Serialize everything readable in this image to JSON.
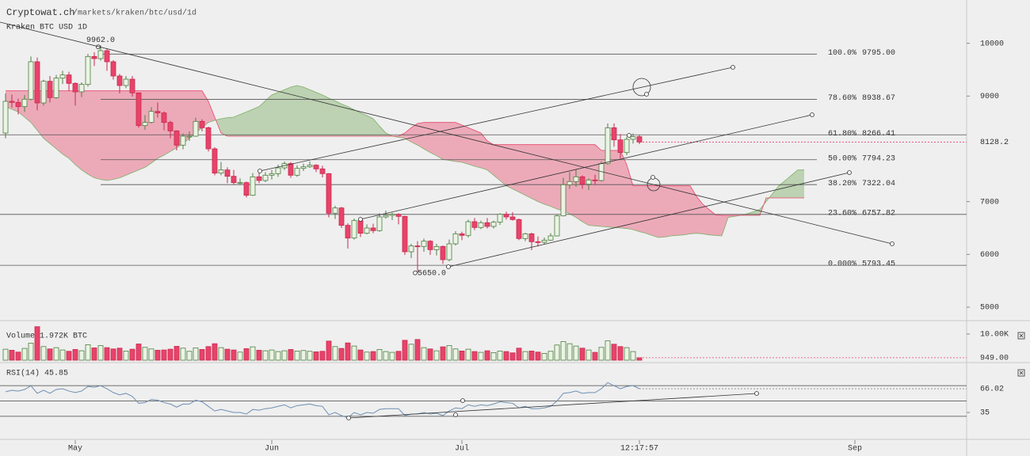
{
  "chart_data": {
    "type": "candlestick",
    "title": "Cryptowat.ch",
    "subtitle": "/markets/kraken/btc/usd/1d",
    "symbol": "Kraken BTC USD 1D",
    "xlim": [
      -0.875,
      151.625
    ],
    "xticks": [
      {
        "value": 11,
        "label": "May"
      },
      {
        "value": 42,
        "label": "Jun"
      },
      {
        "value": 72,
        "label": "Jul"
      },
      {
        "value": 100,
        "label": "12:17:57"
      },
      {
        "value": 134,
        "label": "Sep"
      }
    ],
    "ylim": [
      4745,
      10820
    ],
    "yticks": [
      5000,
      6000,
      7000,
      9000,
      10000
    ],
    "candles": {
      "up_color": "#eaf4e4",
      "up_stroke": "#4d7d3f",
      "down_color": "#e8436a",
      "down_stroke": "#c8284f",
      "last_label": "8128.2",
      "open": [
        8300,
        8900,
        8880,
        8800,
        8940,
        9650,
        8870,
        9280,
        8970,
        9340,
        9400,
        9240,
        9080,
        9220,
        9750,
        9710,
        9860,
        9650,
        9380,
        9200,
        9320,
        9060,
        8440,
        8500,
        8710,
        8680,
        8500,
        8340,
        8070,
        8240,
        8240,
        8520,
        8400,
        8000,
        7540,
        7600,
        7480,
        7360,
        7360,
        7120,
        7470,
        7400,
        7500,
        7530,
        7640,
        7720,
        7500,
        7630,
        7660,
        7690,
        7620,
        7530,
        6780,
        6880,
        6550,
        6310,
        6640,
        6400,
        6500,
        6450,
        6710,
        6740,
        6760,
        6720,
        6050,
        6160,
        6150,
        6250,
        6090,
        6150,
        5900,
        6200,
        6390,
        6360,
        6620,
        6510,
        6600,
        6530,
        6610,
        6760,
        6710,
        6660,
        6300,
        6390,
        6240,
        6230,
        6270,
        6350,
        6730,
        7320,
        7380,
        7470,
        7330,
        7410,
        7400,
        7720,
        8400,
        8170,
        7930,
        8180,
        8230
      ],
      "high": [
        9050,
        9030,
        8950,
        9020,
        9750,
        9730,
        9310,
        9380,
        9400,
        9480,
        9460,
        9260,
        9260,
        9800,
        9830,
        9962,
        9900,
        9680,
        9420,
        9380,
        9380,
        9070,
        8640,
        8790,
        8880,
        8710,
        8530,
        8350,
        8290,
        8330,
        8590,
        8560,
        8420,
        8030,
        7750,
        7650,
        7600,
        7440,
        7380,
        7540,
        7540,
        7560,
        7600,
        7700,
        7760,
        7750,
        7690,
        7720,
        7760,
        7710,
        7680,
        7540,
        6920,
        6900,
        6590,
        6680,
        6660,
        6570,
        6580,
        6780,
        6830,
        6790,
        6780,
        6730,
        6200,
        6250,
        6300,
        6270,
        6200,
        6170,
        6280,
        6440,
        6430,
        6660,
        6690,
        6640,
        6690,
        6640,
        6780,
        6810,
        6800,
        6680,
        6410,
        6410,
        6340,
        6320,
        6400,
        6750,
        7450,
        7560,
        7610,
        7500,
        7440,
        7510,
        7760,
        8480,
        8480,
        8280,
        8230,
        8290,
        8260
      ],
      "low": [
        8200,
        8780,
        8650,
        8700,
        8920,
        8730,
        8820,
        8880,
        8950,
        9230,
        9100,
        8820,
        8980,
        9180,
        9570,
        9670,
        9480,
        9310,
        9050,
        9150,
        8990,
        8400,
        8360,
        8480,
        8590,
        8350,
        8200,
        7970,
        7990,
        8150,
        8230,
        8330,
        7950,
        7500,
        7500,
        7350,
        7320,
        7320,
        7080,
        7110,
        7350,
        7370,
        7420,
        7470,
        7600,
        7450,
        7470,
        7580,
        7640,
        7560,
        7460,
        6700,
        6670,
        6500,
        6110,
        6280,
        6330,
        6380,
        6400,
        6430,
        6680,
        6650,
        6570,
        5990,
        5930,
        5650,
        6050,
        5990,
        5980,
        5820,
        5870,
        6170,
        6270,
        6320,
        6460,
        6480,
        6490,
        6490,
        6560,
        6660,
        6640,
        6270,
        6250,
        6080,
        6150,
        6190,
        6260,
        6340,
        6720,
        7240,
        7280,
        7240,
        7220,
        7320,
        7380,
        7700,
        8040,
        7820,
        7880,
        8100,
        8090
      ],
      "close": [
        8900,
        8880,
        8800,
        8940,
        9650,
        8870,
        9280,
        8970,
        9340,
        9400,
        9240,
        9080,
        9220,
        9750,
        9710,
        9860,
        9650,
        9380,
        9200,
        9320,
        9060,
        8440,
        8500,
        8710,
        8680,
        8500,
        8340,
        8070,
        8240,
        8240,
        8520,
        8400,
        8000,
        7540,
        7600,
        7480,
        7360,
        7360,
        7120,
        7470,
        7400,
        7500,
        7530,
        7640,
        7720,
        7500,
        7630,
        7660,
        7690,
        7620,
        7530,
        6780,
        6880,
        6550,
        6310,
        6640,
        6400,
        6500,
        6450,
        6710,
        6740,
        6760,
        6720,
        6050,
        6160,
        6150,
        6250,
        6090,
        6150,
        5900,
        6200,
        6390,
        6360,
        6620,
        6510,
        6600,
        6530,
        6610,
        6760,
        6710,
        6660,
        6300,
        6390,
        6240,
        6230,
        6270,
        6350,
        6730,
        7320,
        7380,
        7470,
        7330,
        7410,
        7400,
        7720,
        8400,
        8170,
        7930,
        8180,
        8230,
        8128.2
      ]
    },
    "extremes": {
      "values": [
        9962,
        5650
      ],
      "value_labels": [
        "9962.0",
        "5650.0"
      ]
    },
    "fib": {
      "levels": [
        9795,
        8938.67,
        8266.41,
        7794.23,
        7322.04,
        6757.82,
        5793.45
      ],
      "ratio_labels": [
        "100.0%",
        "78.60%",
        "61.80%",
        "50.00%",
        "38.20%",
        "23.60%",
        "0.000%"
      ],
      "value_labels": [
        "9795.00",
        "8938.67",
        "8266.41",
        "7794.23",
        "7322.04",
        "6757.82",
        "5793.45"
      ],
      "extended": [
        false,
        false,
        true,
        false,
        false,
        true,
        true
      ],
      "color": "#555555"
    },
    "cloud": {
      "bull_color": "#7fb069",
      "bear_color": "#e8436a",
      "span_a": [
        8800,
        8750,
        8700,
        8600,
        8500,
        8350,
        8200,
        8100,
        8000,
        7900,
        7820,
        7700,
        7600,
        7520,
        7450,
        7420,
        7400,
        7420,
        7450,
        7500,
        7550,
        7600,
        7650,
        7730,
        7820,
        7880,
        7950,
        8020,
        8100,
        8200,
        8300,
        8400,
        8500,
        8540,
        8570,
        8590,
        8600,
        8650,
        8700,
        8750,
        8800,
        8910,
        9020,
        9070,
        9120,
        9170,
        9200,
        9170,
        9120,
        9070,
        9020,
        8960,
        8910,
        8850,
        8800,
        8740,
        8680,
        8630,
        8570,
        8430,
        8300,
        8240,
        8220,
        8200,
        8130,
        8070,
        8000,
        7930,
        7870,
        7800,
        7780,
        7760,
        7745,
        7710,
        7670,
        7640,
        7600,
        7500,
        7400,
        7300,
        7240,
        7180,
        7120,
        7060,
        7000,
        6950,
        6910,
        6860,
        6820,
        6770,
        6700,
        6620,
        6550,
        6540,
        6530,
        6520,
        6510,
        6500,
        6490,
        6470,
        6430,
        6400,
        6360,
        6320,
        6330,
        6350,
        6360,
        6370,
        6390,
        6400,
        6390,
        6370,
        6360,
        6350,
        6700,
        6720,
        6740,
        6770,
        6810,
        6850,
        7000,
        7150,
        7300,
        7400,
        7500,
        7600,
        7600
      ],
      "span_b": [
        9100,
        9100,
        9100,
        9100,
        9100,
        9100,
        9100,
        9100,
        9100,
        9100,
        9100,
        9100,
        9100,
        9100,
        9100,
        9100,
        9100,
        9100,
        9100,
        9100,
        9100,
        9100,
        9100,
        9100,
        9100,
        9100,
        9100,
        9100,
        9100,
        9100,
        9100,
        9100,
        8900,
        8600,
        8300,
        8240,
        8240,
        8240,
        8240,
        8240,
        8240,
        8240,
        8240,
        8240,
        8240,
        8240,
        8240,
        8240,
        8240,
        8240,
        8240,
        8240,
        8240,
        8240,
        8240,
        8240,
        8240,
        8240,
        8240,
        8240,
        8240,
        8240,
        8240,
        8300,
        8400,
        8480,
        8500,
        8500,
        8500,
        8500,
        8500,
        8500,
        8450,
        8400,
        8350,
        8300,
        8150,
        8080,
        8080,
        8080,
        8080,
        8080,
        8080,
        8080,
        8080,
        8080,
        8080,
        8080,
        8080,
        8080,
        8080,
        8080,
        8080,
        8080,
        7970,
        7970,
        7970,
        7970,
        7700,
        7300,
        7300,
        7300,
        7300,
        7300,
        7300,
        7300,
        7300,
        7300,
        7300,
        7100,
        6950,
        6850,
        6750,
        6740,
        6740,
        6740,
        6740,
        6740,
        6740,
        6740,
        7070,
        7070,
        7070,
        7070,
        7070,
        7070,
        7070
      ]
    },
    "volume": {
      "legend": "Volume 1.972K BTC",
      "last_label": "949.00",
      "ylim": [
        0,
        13600
      ],
      "yticks": [
        {
          "value": 10000,
          "label": "10.00K"
        }
      ],
      "values": [
        4200,
        3800,
        3100,
        4500,
        6500,
        12800,
        5200,
        4300,
        4800,
        3900,
        3400,
        4100,
        3600,
        5900,
        4700,
        5600,
        4800,
        4300,
        4600,
        3500,
        4200,
        6200,
        4900,
        4300,
        3800,
        3900,
        4200,
        5300,
        4600,
        3400,
        4700,
        4100,
        5200,
        6300,
        4800,
        4200,
        3900,
        3100,
        4400,
        5100,
        3800,
        3600,
        3900,
        3300,
        3600,
        4100,
        3500,
        3700,
        3400,
        3200,
        3400,
        7300,
        5200,
        4500,
        6600,
        5400,
        3900,
        3100,
        3300,
        4100,
        3300,
        3000,
        3400,
        7600,
        6100,
        7900,
        4800,
        4300,
        3600,
        5100,
        5600,
        4300,
        3500,
        4200,
        3300,
        3000,
        3600,
        2900,
        3500,
        3300,
        2800,
        4600,
        3300,
        3500,
        3100,
        2600,
        3400,
        5800,
        7100,
        6300,
        5400,
        4600,
        3900,
        3000,
        4900,
        7400,
        6100,
        5200,
        4800,
        3300,
        949
      ]
    },
    "rsi": {
      "label": "RSI(14) 45.85",
      "last_label": "66.02",
      "color": "#6f8fb3",
      "ylim": [
        3,
        96
      ],
      "yticks": [
        35
      ],
      "bands": [
        70,
        50,
        30
      ],
      "values": [
        62,
        64,
        63,
        65,
        70,
        60,
        64,
        60,
        65,
        66,
        63,
        61,
        63,
        69,
        68,
        70,
        66,
        61,
        58,
        60,
        56,
        47,
        48,
        52,
        51,
        48,
        46,
        42,
        46,
        46,
        51,
        49,
        43,
        37,
        39,
        37,
        35,
        35,
        33,
        39,
        38,
        40,
        41,
        43,
        45,
        41,
        44,
        45,
        46,
        44,
        43,
        32,
        35,
        31,
        28,
        35,
        32,
        35,
        34,
        39,
        40,
        40,
        40,
        31,
        33,
        33,
        35,
        33,
        34,
        31,
        37,
        41,
        40,
        45,
        43,
        45,
        44,
        46,
        49,
        48,
        47,
        41,
        43,
        40,
        40,
        41,
        43,
        50,
        60,
        61,
        63,
        60,
        61,
        61,
        66,
        74,
        70,
        66,
        69,
        70,
        66.02
      ]
    }
  }
}
